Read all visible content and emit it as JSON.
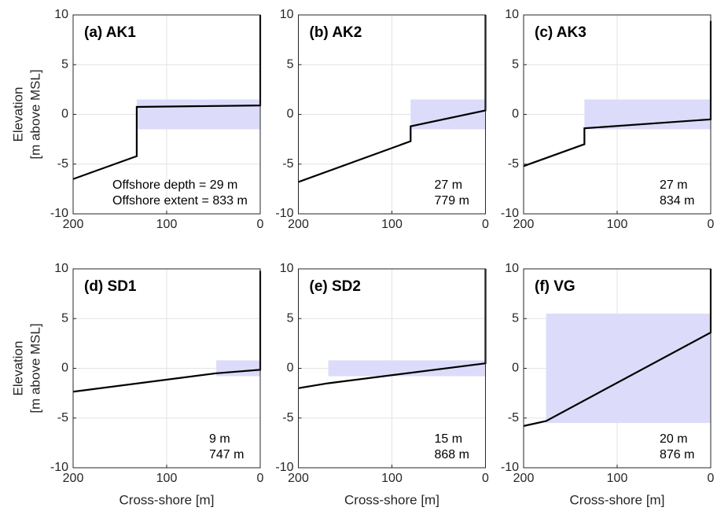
{
  "chart_data": [
    {
      "type": "line",
      "title": "(a) AK1",
      "y_label": [
        "Elevation",
        "[m above MSL]"
      ],
      "x": [
        200,
        132,
        132,
        0,
        0
      ],
      "series": [
        {
          "color": "#000000",
          "values": [
            -6.5,
            -4.2,
            0.75,
            0.9,
            10
          ]
        }
      ],
      "shaded_region": {
        "xlim": [
          132,
          0
        ],
        "ylim": [
          -1.5,
          1.5
        ],
        "color": "#dcdcfa"
      },
      "annotations": [
        "Offshore depth = 29 m",
        "Offshore extent = 833 m"
      ],
      "xlim": [
        200,
        0
      ],
      "xticks": [
        200,
        100,
        0
      ],
      "ylim": [
        -10,
        10
      ],
      "yticks": [
        -10,
        -5,
        0,
        5,
        10
      ],
      "grid": true
    },
    {
      "type": "line",
      "title": "(b) AK2",
      "x": [
        200,
        80,
        80,
        0,
        0
      ],
      "series": [
        {
          "color": "#000000",
          "values": [
            -6.8,
            -2.7,
            -1.2,
            0.4,
            10
          ]
        }
      ],
      "shaded_region": {
        "xlim": [
          80,
          0
        ],
        "ylim": [
          -1.5,
          1.5
        ],
        "color": "#dcdcfa"
      },
      "annotations": [
        "27 m",
        "779 m"
      ],
      "xlim": [
        200,
        0
      ],
      "xticks": [
        200,
        100,
        0
      ],
      "ylim": [
        -10,
        10
      ],
      "yticks": [
        -10,
        -5,
        0,
        5,
        10
      ],
      "grid": true
    },
    {
      "type": "line",
      "title": "(c) AK3",
      "x": [
        200,
        135,
        135,
        0,
        0
      ],
      "series": [
        {
          "color": "#000000",
          "values": [
            -5.2,
            -3.0,
            -1.4,
            -0.5,
            9.4
          ]
        }
      ],
      "shaded_region": {
        "xlim": [
          135,
          0
        ],
        "ylim": [
          -1.5,
          1.5
        ],
        "color": "#dcdcfa"
      },
      "annotations": [
        "27 m",
        "834 m"
      ],
      "xlim": [
        200,
        0
      ],
      "xticks": [
        200,
        100,
        0
      ],
      "ylim": [
        -10,
        10
      ],
      "yticks": [
        -10,
        -5,
        0,
        5,
        10
      ],
      "grid": true
    },
    {
      "type": "line",
      "title": "(d) SD1",
      "y_label": [
        "Elevation",
        "[m above MSL]"
      ],
      "x_label": "Cross-shore [m]",
      "x": [
        200,
        47,
        0,
        0
      ],
      "series": [
        {
          "color": "#000000",
          "values": [
            -2.35,
            -0.5,
            -0.15,
            9.8
          ]
        }
      ],
      "shaded_region": {
        "xlim": [
          47,
          0
        ],
        "ylim": [
          -0.8,
          0.8
        ],
        "color": "#dcdcfa"
      },
      "annotations": [
        "9 m",
        "747 m"
      ],
      "xlim": [
        200,
        0
      ],
      "xticks": [
        200,
        100,
        0
      ],
      "ylim": [
        -10,
        10
      ],
      "yticks": [
        -10,
        -5,
        0,
        5,
        10
      ],
      "grid": true
    },
    {
      "type": "line",
      "title": "(e) SD2",
      "x_label": "Cross-shore [m]",
      "x": [
        200,
        168,
        0,
        0
      ],
      "series": [
        {
          "color": "#000000",
          "values": [
            -2.0,
            -1.5,
            0.5,
            10
          ]
        }
      ],
      "shaded_region": {
        "xlim": [
          168,
          0
        ],
        "ylim": [
          -0.8,
          0.8
        ],
        "color": "#dcdcfa"
      },
      "annotations": [
        "15 m",
        "868 m"
      ],
      "xlim": [
        200,
        0
      ],
      "xticks": [
        200,
        100,
        0
      ],
      "ylim": [
        -10,
        10
      ],
      "yticks": [
        -10,
        -5,
        0,
        5,
        10
      ],
      "grid": true
    },
    {
      "type": "line",
      "title": "(f) VG",
      "x_label": "Cross-shore [m]",
      "x": [
        200,
        176,
        0,
        0
      ],
      "series": [
        {
          "color": "#000000",
          "values": [
            -5.8,
            -5.3,
            3.6,
            10
          ]
        }
      ],
      "shaded_region": {
        "xlim": [
          176,
          0
        ],
        "ylim": [
          -5.5,
          5.5
        ],
        "color": "#dcdcfa"
      },
      "annotations": [
        "20 m",
        "876 m"
      ],
      "xlim": [
        200,
        0
      ],
      "xticks": [
        200,
        100,
        0
      ],
      "ylim": [
        -10,
        10
      ],
      "yticks": [
        -10,
        -5,
        0,
        5,
        10
      ],
      "grid": true
    }
  ]
}
